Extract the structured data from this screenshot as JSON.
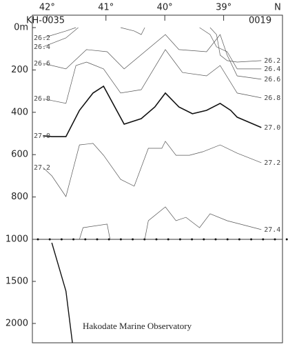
{
  "chart_data": [
    {
      "type": "contour",
      "station_labels": [
        "KH-0035",
        "0019"
      ],
      "xlabel": "N",
      "xlim": [
        42.25,
        38.0
      ],
      "ylim": [
        0,
        1000
      ],
      "xticks": [
        {
          "value": 42,
          "label": "42°"
        },
        {
          "value": 41,
          "label": "41°"
        },
        {
          "value": 40,
          "label": "40°"
        },
        {
          "value": 39,
          "label": "39°"
        }
      ],
      "yticks": [
        {
          "value": 0,
          "label": "0m"
        },
        200,
        400,
        600,
        800,
        1000
      ],
      "series": [
        {
          "name": "26.2",
          "color": "#555",
          "width": 0.7,
          "x": [
            42.07,
            41.68,
            41.51,
            null,
            40.75,
            40.52,
            40.4,
            40.34,
            null,
            39.23,
            39.12,
            39.06,
            38.94,
            38.77,
            38.36
          ],
          "values": [
            49,
            16,
            0,
            null,
            0,
            16,
            33,
            0,
            null,
            0,
            33,
            130,
            156,
            163,
            156
          ]
        },
        {
          "name": "26.4",
          "color": "#555",
          "width": 0.7,
          "x": [
            42.07,
            41.68,
            41.47,
            null,
            39.41,
            39.23,
            39.12,
            38.94,
            38.77,
            38.36
          ],
          "values": [
            91,
            49,
            0,
            null,
            0,
            33,
            91,
            114,
            195,
            195
          ]
        },
        {
          "name": "26.6",
          "color": "#555",
          "width": 0.7,
          "x": [
            42.07,
            41.68,
            41.33,
            40.98,
            40.69,
            39.99,
            39.76,
            39.29,
            39.06,
            38.94,
            38.77,
            38.36
          ],
          "values": [
            169,
            195,
            104,
            114,
            195,
            33,
            104,
            114,
            33,
            130,
            228,
            244
          ]
        },
        {
          "name": "26.8",
          "color": "#555",
          "width": 0.7,
          "x": [
            42.07,
            41.68,
            41.51,
            41.33,
            41.04,
            40.75,
            40.4,
            39.99,
            39.7,
            39.29,
            39.06,
            38.77,
            38.36
          ],
          "values": [
            336,
            358,
            179,
            163,
            195,
            309,
            293,
            104,
            212,
            228,
            179,
            309,
            332
          ]
        },
        {
          "name": "27.0",
          "color": "#111",
          "width": 1.6,
          "x": [
            42.07,
            41.92,
            41.68,
            41.45,
            41.22,
            41.04,
            40.69,
            40.4,
            40.17,
            39.99,
            39.76,
            39.53,
            39.29,
            39.06,
            38.88,
            38.77,
            38.36
          ],
          "values": [
            511,
            515,
            515,
            391,
            309,
            277,
            456,
            430,
            375,
            309,
            375,
            407,
            391,
            358,
            391,
            423,
            472
          ]
        },
        {
          "name": "27.2",
          "color": "#555",
          "width": 0.7,
          "x": [
            42.07,
            41.92,
            41.68,
            41.45,
            41.22,
            41.04,
            40.75,
            40.52,
            40.28,
            40.05,
            39.99,
            39.81,
            39.58,
            39.35,
            39.06,
            38.77,
            38.36
          ],
          "values": [
            661,
            700,
            798,
            554,
            547,
            603,
            717,
            749,
            570,
            570,
            537,
            603,
            603,
            586,
            554,
            593,
            638
          ]
        },
        {
          "name": "27.4",
          "color": "#555",
          "width": 0.7,
          "label_sides": [
            "right"
          ],
          "x": [
            41.45,
            41.39,
            40.98,
            40.93,
            null,
            40.34,
            40.28,
            39.99,
            39.81,
            39.64,
            39.41,
            39.23,
            38.94,
            38.36
          ],
          "values": [
            1000,
            945,
            928,
            1000,
            null,
            1000,
            912,
            847,
            912,
            896,
            945,
            879,
            912,
            954
          ]
        }
      ]
    },
    {
      "type": "contour",
      "annotation": "Hakodate Marine Observatory",
      "xlim": [
        42.25,
        38.0
      ],
      "ylim": [
        1000,
        2230
      ],
      "yticks": [
        1500,
        2000
      ],
      "series": [
        {
          "color": "#111",
          "width": 1.4,
          "x": [
            41.92,
            41.68,
            41.57
          ],
          "values": [
            1041,
            1615,
            2230
          ]
        }
      ]
    }
  ]
}
